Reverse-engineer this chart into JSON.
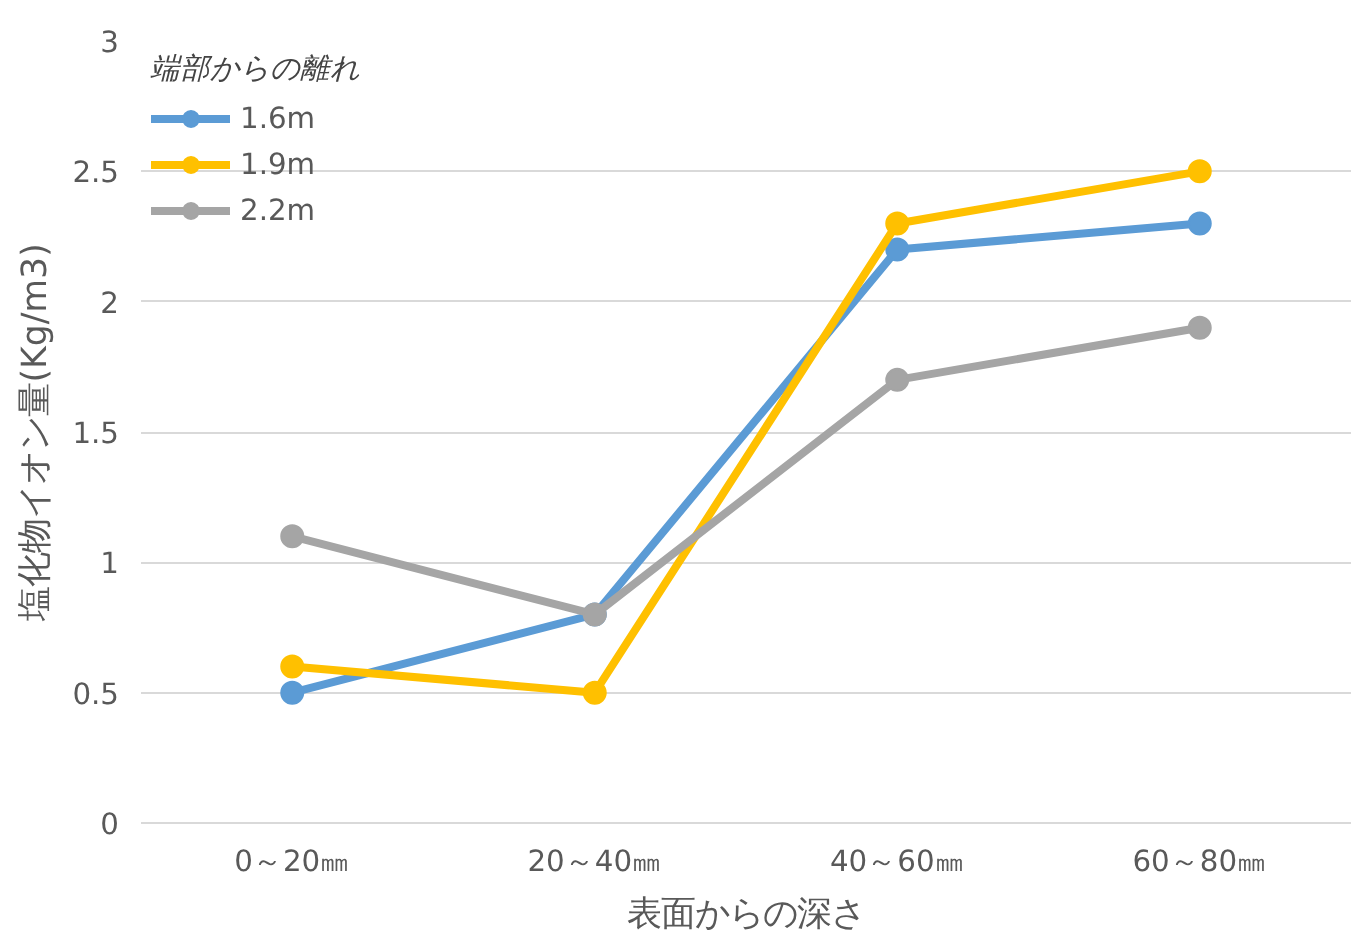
{
  "chart_data": {
    "type": "line",
    "xlabel": "表面からの深さ",
    "ylabel": "塩化物イオン量(Kg/m3)",
    "legend_title": "端部からの離れ",
    "categories": [
      "0～20㎜",
      "20～40㎜",
      "40～60㎜",
      "60～80㎜"
    ],
    "series": [
      {
        "name": "1.6m",
        "color": "#5b9bd5",
        "values": [
          0.5,
          0.8,
          2.2,
          2.3
        ]
      },
      {
        "name": "1.9m",
        "color": "#ffc000",
        "values": [
          0.6,
          0.5,
          2.3,
          2.5
        ]
      },
      {
        "name": "2.2m",
        "color": "#a5a5a5",
        "values": [
          1.1,
          0.8,
          1.7,
          1.9
        ]
      }
    ],
    "ylim": [
      0,
      3
    ],
    "yticks": [
      0,
      0.5,
      1,
      1.5,
      2,
      2.5,
      3
    ],
    "grid": "y",
    "legend": "top left",
    "marker": "circle",
    "line_style": "solid"
  }
}
